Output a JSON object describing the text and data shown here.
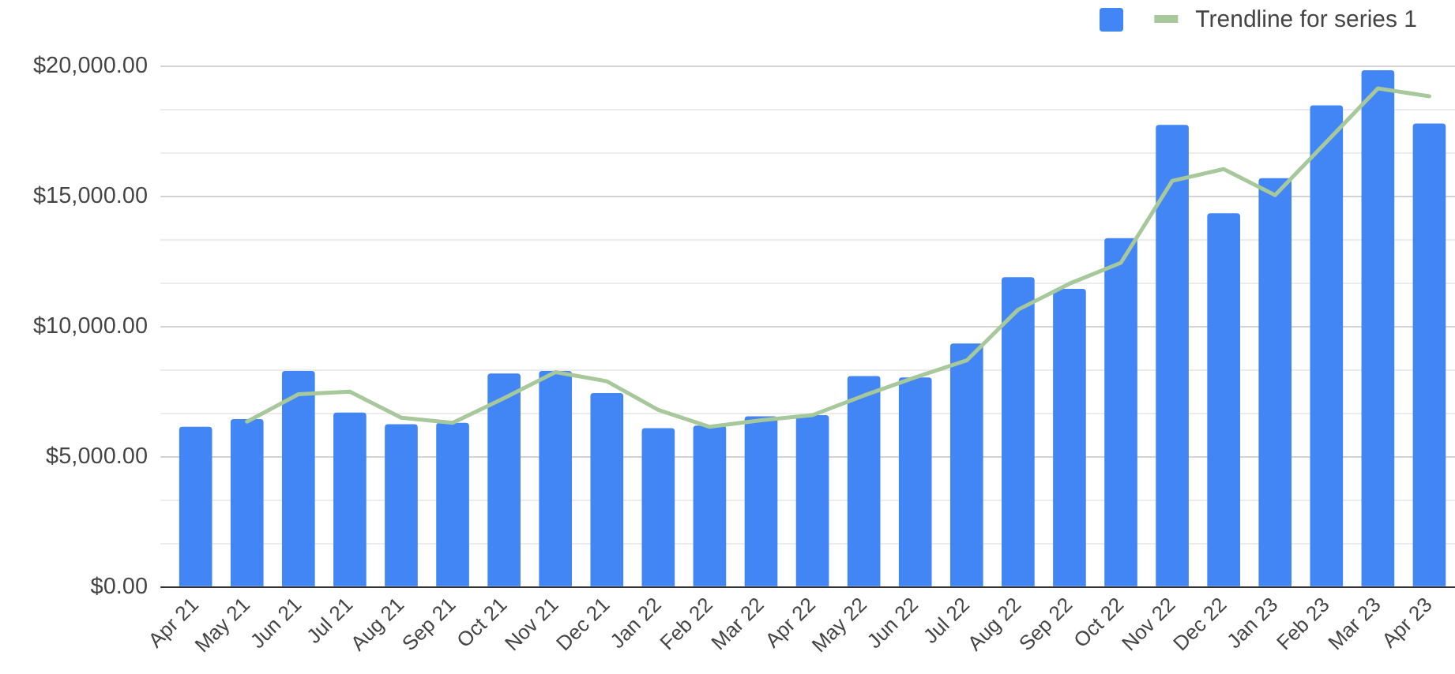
{
  "chart_data": {
    "type": "bar",
    "categories": [
      "Apr 21",
      "May 21",
      "Jun 21",
      "Jul 21",
      "Aug 21",
      "Sep 21",
      "Oct 21",
      "Nov 21",
      "Dec 21",
      "Jan 22",
      "Feb 22",
      "Mar 22",
      "Apr 22",
      "May 22",
      "Jun 22",
      "Jul 22",
      "Aug 22",
      "Sep 22",
      "Oct 22",
      "Nov 22",
      "Dec 22",
      "Jan 23",
      "Feb 23",
      "Mar 23",
      "Apr 23"
    ],
    "series": [
      {
        "color": "#4285f4",
        "values": [
          6150,
          6450,
          8300,
          6700,
          6250,
          6300,
          8200,
          8300,
          7450,
          6100,
          6200,
          6550,
          6600,
          8100,
          8050,
          9350,
          11900,
          11450,
          13400,
          17750,
          14350,
          15700,
          18500,
          19850,
          17800
        ]
      },
      {
        "name": "Trendline for series 1",
        "type": "line",
        "color": "#a6c89a",
        "values": [
          null,
          6350,
          7400,
          7500,
          6500,
          6300,
          7250,
          8250,
          7900,
          6800,
          6150,
          6400,
          6600,
          7350,
          8050,
          8700,
          10650,
          11650,
          12450,
          15600,
          16050,
          15050,
          17100,
          19150,
          18850
        ]
      }
    ],
    "ylim": [
      0,
      20000
    ],
    "yticks": [
      {
        "value": 0,
        "label": "$0.00"
      },
      {
        "value": 1666.67,
        "label": null
      },
      {
        "value": 3333.33,
        "label": null
      },
      {
        "value": 5000,
        "label": "$5,000.00"
      },
      {
        "value": 6666.67,
        "label": null
      },
      {
        "value": 8333.33,
        "label": null
      },
      {
        "value": 10000,
        "label": "$10,000.00"
      },
      {
        "value": 11666.67,
        "label": null
      },
      {
        "value": 13333.33,
        "label": null
      },
      {
        "value": 15000,
        "label": "$15,000.00"
      },
      {
        "value": 16666.67,
        "label": null
      },
      {
        "value": 18333.33,
        "label": null
      },
      {
        "value": 20000,
        "label": "$20,000.00"
      }
    ],
    "grid": "y",
    "legend": "top right"
  }
}
